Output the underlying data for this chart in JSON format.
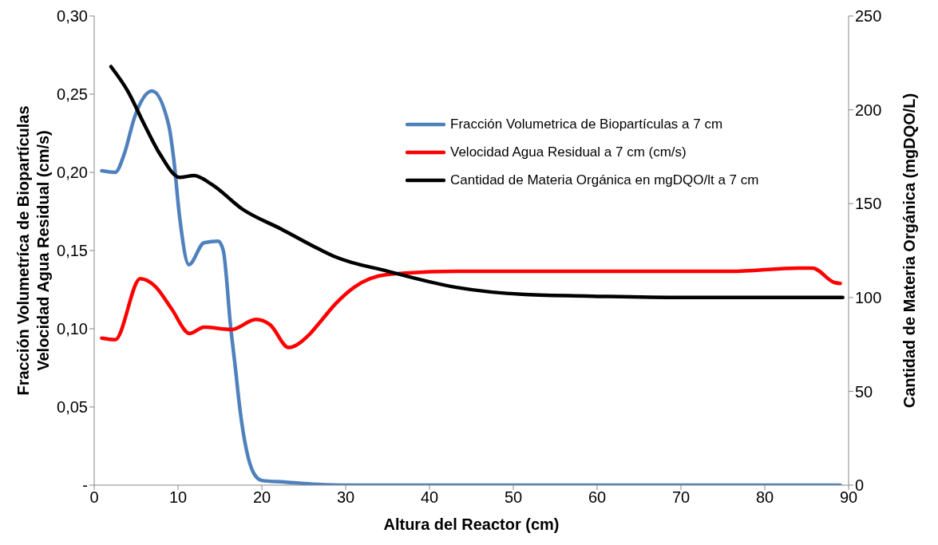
{
  "chart_data": {
    "type": "line",
    "xlabel": "Altura del Reactor (cm)",
    "ylabel": "Fracción Volumetríca de Biopartículas\nVelocidad Agua Residual (cm/s)",
    "y2label": "Cantidad de Materia Orgánica (mgDQO/L)",
    "xlim": [
      0,
      90
    ],
    "xticks": [
      0,
      10,
      20,
      30,
      40,
      50,
      60,
      70,
      80,
      90
    ],
    "ylim": [
      0,
      0.3
    ],
    "yticks": [
      {
        "value": 0,
        "label": "-"
      },
      {
        "value": 0.05,
        "label": "0,05"
      },
      {
        "value": 0.1,
        "label": "0,10"
      },
      {
        "value": 0.15,
        "label": "0,15"
      },
      {
        "value": 0.2,
        "label": "0,20"
      },
      {
        "value": 0.25,
        "label": "0,25"
      },
      {
        "value": 0.3,
        "label": "0,30"
      }
    ],
    "y2lim": [
      0,
      250
    ],
    "y2ticks": [
      0,
      50,
      100,
      150,
      200,
      250
    ],
    "grid": false,
    "legend": "top right",
    "marker": "none",
    "line_style": "solid",
    "series": [
      {
        "name": "Fracción Volumetrica de Biopartículas a 7 cm",
        "color": "#4f81bd",
        "x": [
          0.9,
          2.5,
          3.6,
          4.8,
          6.9,
          8.9,
          9.5,
          10.2,
          11.3,
          13.1,
          14.8,
          15.4,
          16.3,
          16.8,
          17.4,
          19.0,
          20.0,
          22.6,
          26.6,
          30,
          40,
          50,
          60,
          70,
          80,
          89
        ],
        "values": [
          0.201,
          0.2,
          0.212,
          0.235,
          0.252,
          0.23,
          0.208,
          0.171,
          0.141,
          0.155,
          0.156,
          0.15,
          0.1,
          0.077,
          0.048,
          0.008,
          0.003,
          0.002,
          0.0005,
          0,
          0,
          0,
          0,
          0,
          0,
          0
        ]
      },
      {
        "name": "Velocidad Agua Residual a 7 cm (cm/s)",
        "color": "#ff0000",
        "x": [
          0.9,
          2.5,
          5.5,
          7.3,
          9.2,
          11.4,
          13.1,
          16.4,
          19.3,
          21,
          23.2,
          25.6,
          26.9,
          28.8,
          31,
          35,
          43.2,
          60,
          75.9,
          84,
          85.7,
          88.3,
          89
        ],
        "values": [
          0.094,
          0.093,
          0.132,
          0.127,
          0.113,
          0.097,
          0.101,
          0.0995,
          0.106,
          0.1025,
          0.088,
          0.096,
          0.104,
          0.116,
          0.1265,
          0.1347,
          0.1367,
          0.1367,
          0.1367,
          0.1388,
          0.1388,
          0.1296,
          0.129
        ]
      },
      {
        "name": "Cantidad de Materia Orgánica en mgDQO/lt a 7 cm",
        "color": "#000000",
        "axis": "y2",
        "x": [
          2.0,
          4.0,
          6.0,
          7.9,
          10.2,
          11.9,
          14.1,
          17.7,
          22.3,
          26.9,
          28.8,
          35,
          43.2,
          51.4,
          59.5,
          70,
          80,
          89.3
        ],
        "values": [
          223,
          210,
          192,
          176,
          164,
          165,
          160,
          147,
          136.5,
          125.6,
          121.6,
          114,
          105.4,
          101.6,
          100.7,
          100,
          100,
          100
        ]
      }
    ]
  }
}
